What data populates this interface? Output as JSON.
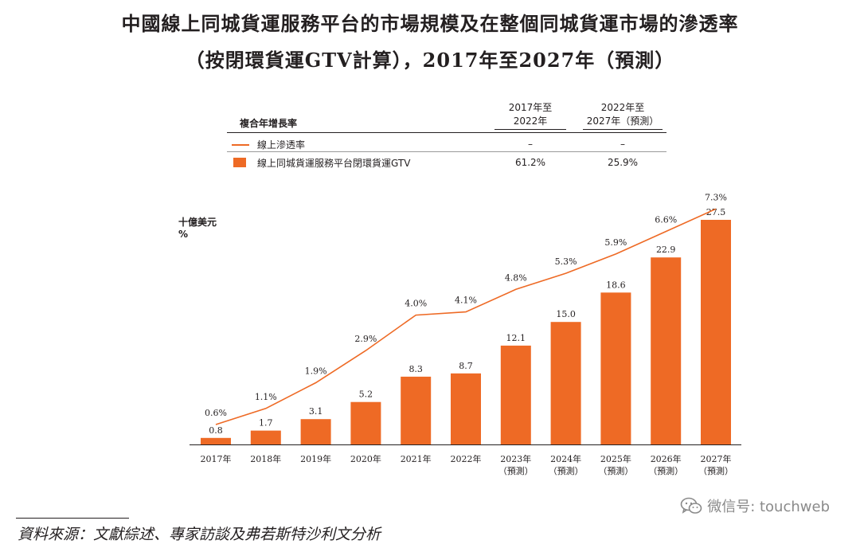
{
  "title_line1": "中國線上同城貨運服務平台的市場規模及在整個同城貨運市場的滲透率",
  "title_line2": "（按閉環貨運GTV計算），2017年至2027年（預測）",
  "cagr_table": {
    "header_label": "複合年增長率",
    "col1": [
      "2017年至",
      "2022年"
    ],
    "col2": [
      "2022年至",
      "2027年（預測）"
    ],
    "rows": [
      {
        "label": "線上滲透率",
        "v1": "–",
        "v2": "–"
      },
      {
        "label": "線上同城貨運服務平台閉環貨運GTV",
        "v1": "61.2%",
        "v2": "25.9%"
      }
    ]
  },
  "units": [
    "十億美元",
    "%"
  ],
  "chart_data": {
    "type": "bar",
    "categories": [
      "2017年",
      "2018年",
      "2019年",
      "2020年",
      "2021年",
      "2022年",
      "2023年",
      "2024年",
      "2025年",
      "2026年",
      "2027年"
    ],
    "category_subs": [
      "",
      "",
      "",
      "",
      "",
      "",
      "（預測）",
      "（預測）",
      "（預測）",
      "（預測）",
      "（預測）"
    ],
    "series": [
      {
        "name": "線上同城貨運服務平台閉環貨運GTV",
        "type": "bar",
        "color": "#ee6a25",
        "values": [
          0.8,
          1.7,
          3.1,
          5.2,
          8.3,
          8.7,
          12.1,
          15.0,
          18.6,
          22.9,
          27.5
        ],
        "labels": [
          "0.8",
          "1.7",
          "3.1",
          "5.2",
          "8.3",
          "8.7",
          "12.1",
          "15.0",
          "18.6",
          "22.9",
          "27.5"
        ]
      },
      {
        "name": "線上滲透率",
        "type": "line",
        "color": "#ee6a25",
        "values": [
          0.6,
          1.1,
          1.9,
          2.9,
          4.0,
          4.1,
          4.8,
          5.3,
          5.9,
          6.6,
          7.3
        ],
        "labels": [
          "0.6%",
          "1.1%",
          "1.9%",
          "2.9%",
          "4.0%",
          "4.1%",
          "4.8%",
          "5.3%",
          "5.9%",
          "6.6%",
          "7.3%"
        ]
      }
    ]
  },
  "source": "資料來源：文獻綜述、專家訪談及弗若斯特沙利文分析",
  "watermark": "微信号: touchweb",
  "watermark_icon": "wechat-icon"
}
